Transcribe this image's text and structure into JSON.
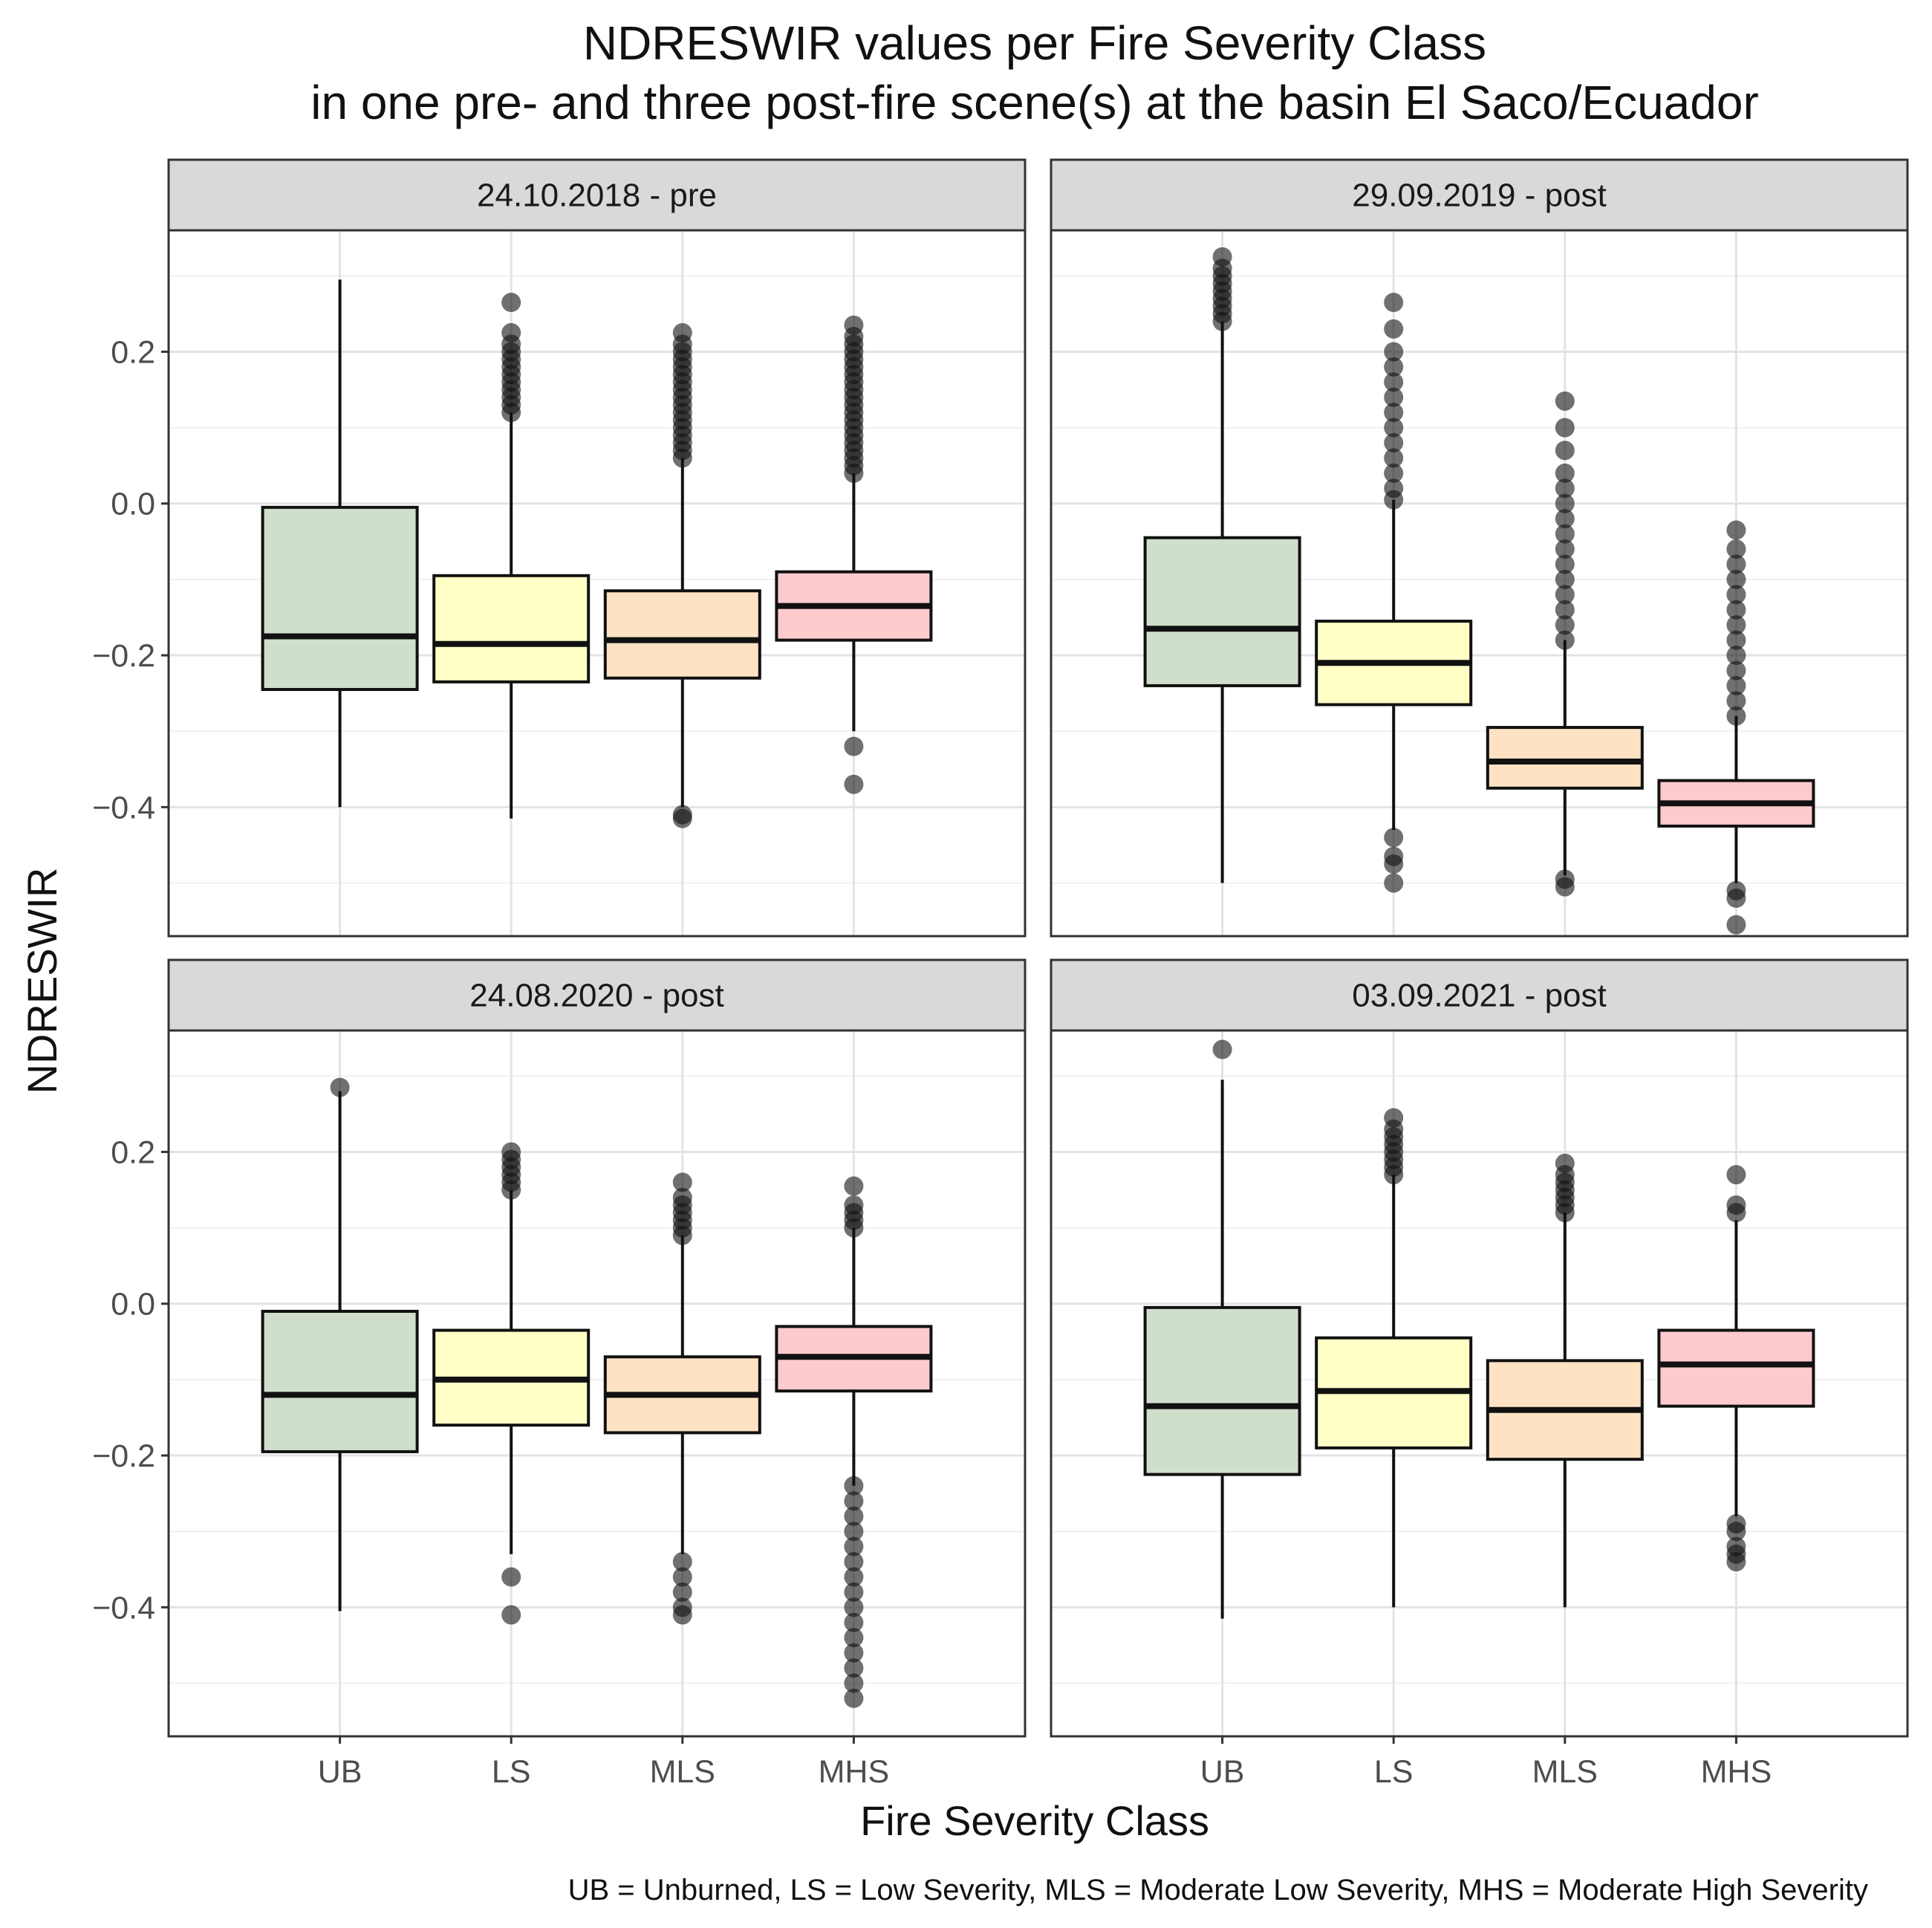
{
  "chart_data": {
    "type": "boxplot",
    "title_line1": "NDRESWIR values per Fire Severity Class",
    "title_line2": "in one pre- and three post-fire scene(s) at the basin El Saco/Ecuador",
    "xlabel": "Fire Severity Class",
    "ylabel": "NDRESWIR",
    "caption": "UB = Unburned, LS = Low Severity, MLS = Moderate Low Severity, MHS = Moderate High Severity",
    "categories": [
      "UB",
      "LS",
      "MLS",
      "MHS"
    ],
    "colors": {
      "UB": "#d0dfcc",
      "LS": "#ffffc6",
      "MLS": "#fde3c3",
      "MHS": "#fdcbce"
    },
    "ylim": [
      -0.57,
      0.36
    ],
    "y_ticks": [
      0.2,
      0.0,
      -0.2,
      -0.4
    ],
    "y_tick_labels": [
      "0.2",
      "0.0",
      "−0.2",
      "−0.4"
    ],
    "grid": true,
    "facets": [
      {
        "label": "24.10.2018 - pre",
        "boxes": [
          {
            "class": "UB",
            "whisker_low": -0.4,
            "q1": -0.245,
            "median": -0.175,
            "q3": -0.005,
            "whisker_high": 0.295,
            "outliers": []
          },
          {
            "class": "LS",
            "whisker_low": -0.415,
            "q1": -0.235,
            "median": -0.185,
            "q3": -0.095,
            "whisker_high": 0.12,
            "outliers": [
              0.12,
              0.13,
              0.14,
              0.15,
              0.16,
              0.17,
              0.18,
              0.19,
              0.2,
              0.21,
              0.225,
              0.265
            ]
          },
          {
            "class": "MLS",
            "whisker_low": -0.4,
            "q1": -0.23,
            "median": -0.18,
            "q3": -0.115,
            "whisker_high": 0.06,
            "outliers": [
              -0.415,
              -0.41,
              0.06,
              0.07,
              0.08,
              0.09,
              0.1,
              0.11,
              0.12,
              0.13,
              0.14,
              0.15,
              0.16,
              0.17,
              0.18,
              0.19,
              0.2,
              0.21,
              0.225
            ]
          },
          {
            "class": "MHS",
            "whisker_low": -0.3,
            "q1": -0.18,
            "median": -0.135,
            "q3": -0.09,
            "whisker_high": 0.04,
            "outliers": [
              -0.37,
              -0.32,
              0.04,
              0.05,
              0.06,
              0.07,
              0.08,
              0.09,
              0.1,
              0.11,
              0.12,
              0.13,
              0.14,
              0.15,
              0.16,
              0.17,
              0.18,
              0.19,
              0.2,
              0.21,
              0.22,
              0.235
            ]
          }
        ]
      },
      {
        "label": "29.09.2019 - post",
        "boxes": [
          {
            "class": "UB",
            "whisker_low": -0.5,
            "q1": -0.24,
            "median": -0.165,
            "q3": -0.045,
            "whisker_high": 0.24,
            "outliers": [
              0.24,
              0.25,
              0.26,
              0.27,
              0.28,
              0.29,
              0.3,
              0.31,
              0.325
            ]
          },
          {
            "class": "LS",
            "whisker_low": -0.43,
            "q1": -0.265,
            "median": -0.21,
            "q3": -0.155,
            "whisker_high": 0.005,
            "outliers": [
              -0.5,
              -0.475,
              -0.465,
              -0.44,
              0.005,
              0.02,
              0.04,
              0.06,
              0.08,
              0.1,
              0.12,
              0.14,
              0.16,
              0.18,
              0.2,
              0.23,
              0.265
            ]
          },
          {
            "class": "MLS",
            "whisker_low": -0.49,
            "q1": -0.375,
            "median": -0.34,
            "q3": -0.295,
            "whisker_high": -0.18,
            "outliers": [
              -0.505,
              -0.495,
              -0.18,
              -0.16,
              -0.14,
              -0.12,
              -0.1,
              -0.08,
              -0.06,
              -0.04,
              -0.02,
              0.0,
              0.02,
              0.04,
              0.07,
              0.1,
              0.135
            ]
          },
          {
            "class": "MHS",
            "whisker_low": -0.5,
            "q1": -0.425,
            "median": -0.395,
            "q3": -0.365,
            "whisker_high": -0.28,
            "outliers": [
              -0.555,
              -0.52,
              -0.51,
              -0.28,
              -0.26,
              -0.24,
              -0.22,
              -0.2,
              -0.18,
              -0.16,
              -0.14,
              -0.12,
              -0.1,
              -0.08,
              -0.06,
              -0.035
            ]
          }
        ]
      },
      {
        "label": "24.08.2020 - post",
        "boxes": [
          {
            "class": "UB",
            "whisker_low": -0.405,
            "q1": -0.195,
            "median": -0.12,
            "q3": -0.01,
            "whisker_high": 0.28,
            "outliers": [
              0.285
            ]
          },
          {
            "class": "LS",
            "whisker_low": -0.33,
            "q1": -0.16,
            "median": -0.1,
            "q3": -0.035,
            "whisker_high": 0.15,
            "outliers": [
              -0.41,
              -0.36,
              0.15,
              0.16,
              0.17,
              0.18,
              0.19,
              0.2
            ]
          },
          {
            "class": "MLS",
            "whisker_low": -0.33,
            "q1": -0.17,
            "median": -0.12,
            "q3": -0.07,
            "whisker_high": 0.09,
            "outliers": [
              -0.41,
              -0.4,
              -0.38,
              -0.36,
              -0.34,
              0.09,
              0.1,
              0.11,
              0.12,
              0.13,
              0.14,
              0.16
            ]
          },
          {
            "class": "MHS",
            "whisker_low": -0.24,
            "q1": -0.115,
            "median": -0.07,
            "q3": -0.03,
            "whisker_high": 0.1,
            "outliers": [
              -0.52,
              -0.5,
              -0.48,
              -0.46,
              -0.44,
              -0.42,
              -0.4,
              -0.38,
              -0.36,
              -0.34,
              -0.32,
              -0.3,
              -0.28,
              -0.26,
              -0.24,
              0.1,
              0.11,
              0.12,
              0.13,
              0.155
            ]
          }
        ]
      },
      {
        "label": "03.09.2021 - post",
        "boxes": [
          {
            "class": "UB",
            "whisker_low": -0.415,
            "q1": -0.225,
            "median": -0.135,
            "q3": -0.005,
            "whisker_high": 0.295,
            "outliers": [
              0.335
            ]
          },
          {
            "class": "LS",
            "whisker_low": -0.4,
            "q1": -0.19,
            "median": -0.115,
            "q3": -0.045,
            "whisker_high": 0.17,
            "outliers": [
              0.17,
              0.18,
              0.19,
              0.2,
              0.21,
              0.22,
              0.23,
              0.245
            ]
          },
          {
            "class": "MLS",
            "whisker_low": -0.4,
            "q1": -0.205,
            "median": -0.14,
            "q3": -0.075,
            "whisker_high": 0.12,
            "outliers": [
              0.12,
              0.13,
              0.14,
              0.15,
              0.16,
              0.17,
              0.185
            ]
          },
          {
            "class": "MHS",
            "whisker_low": -0.28,
            "q1": -0.135,
            "median": -0.08,
            "q3": -0.035,
            "whisker_high": 0.11,
            "outliers": [
              -0.34,
              -0.33,
              -0.32,
              -0.3,
              -0.29,
              0.12,
              0.13,
              0.17
            ]
          }
        ]
      }
    ]
  }
}
